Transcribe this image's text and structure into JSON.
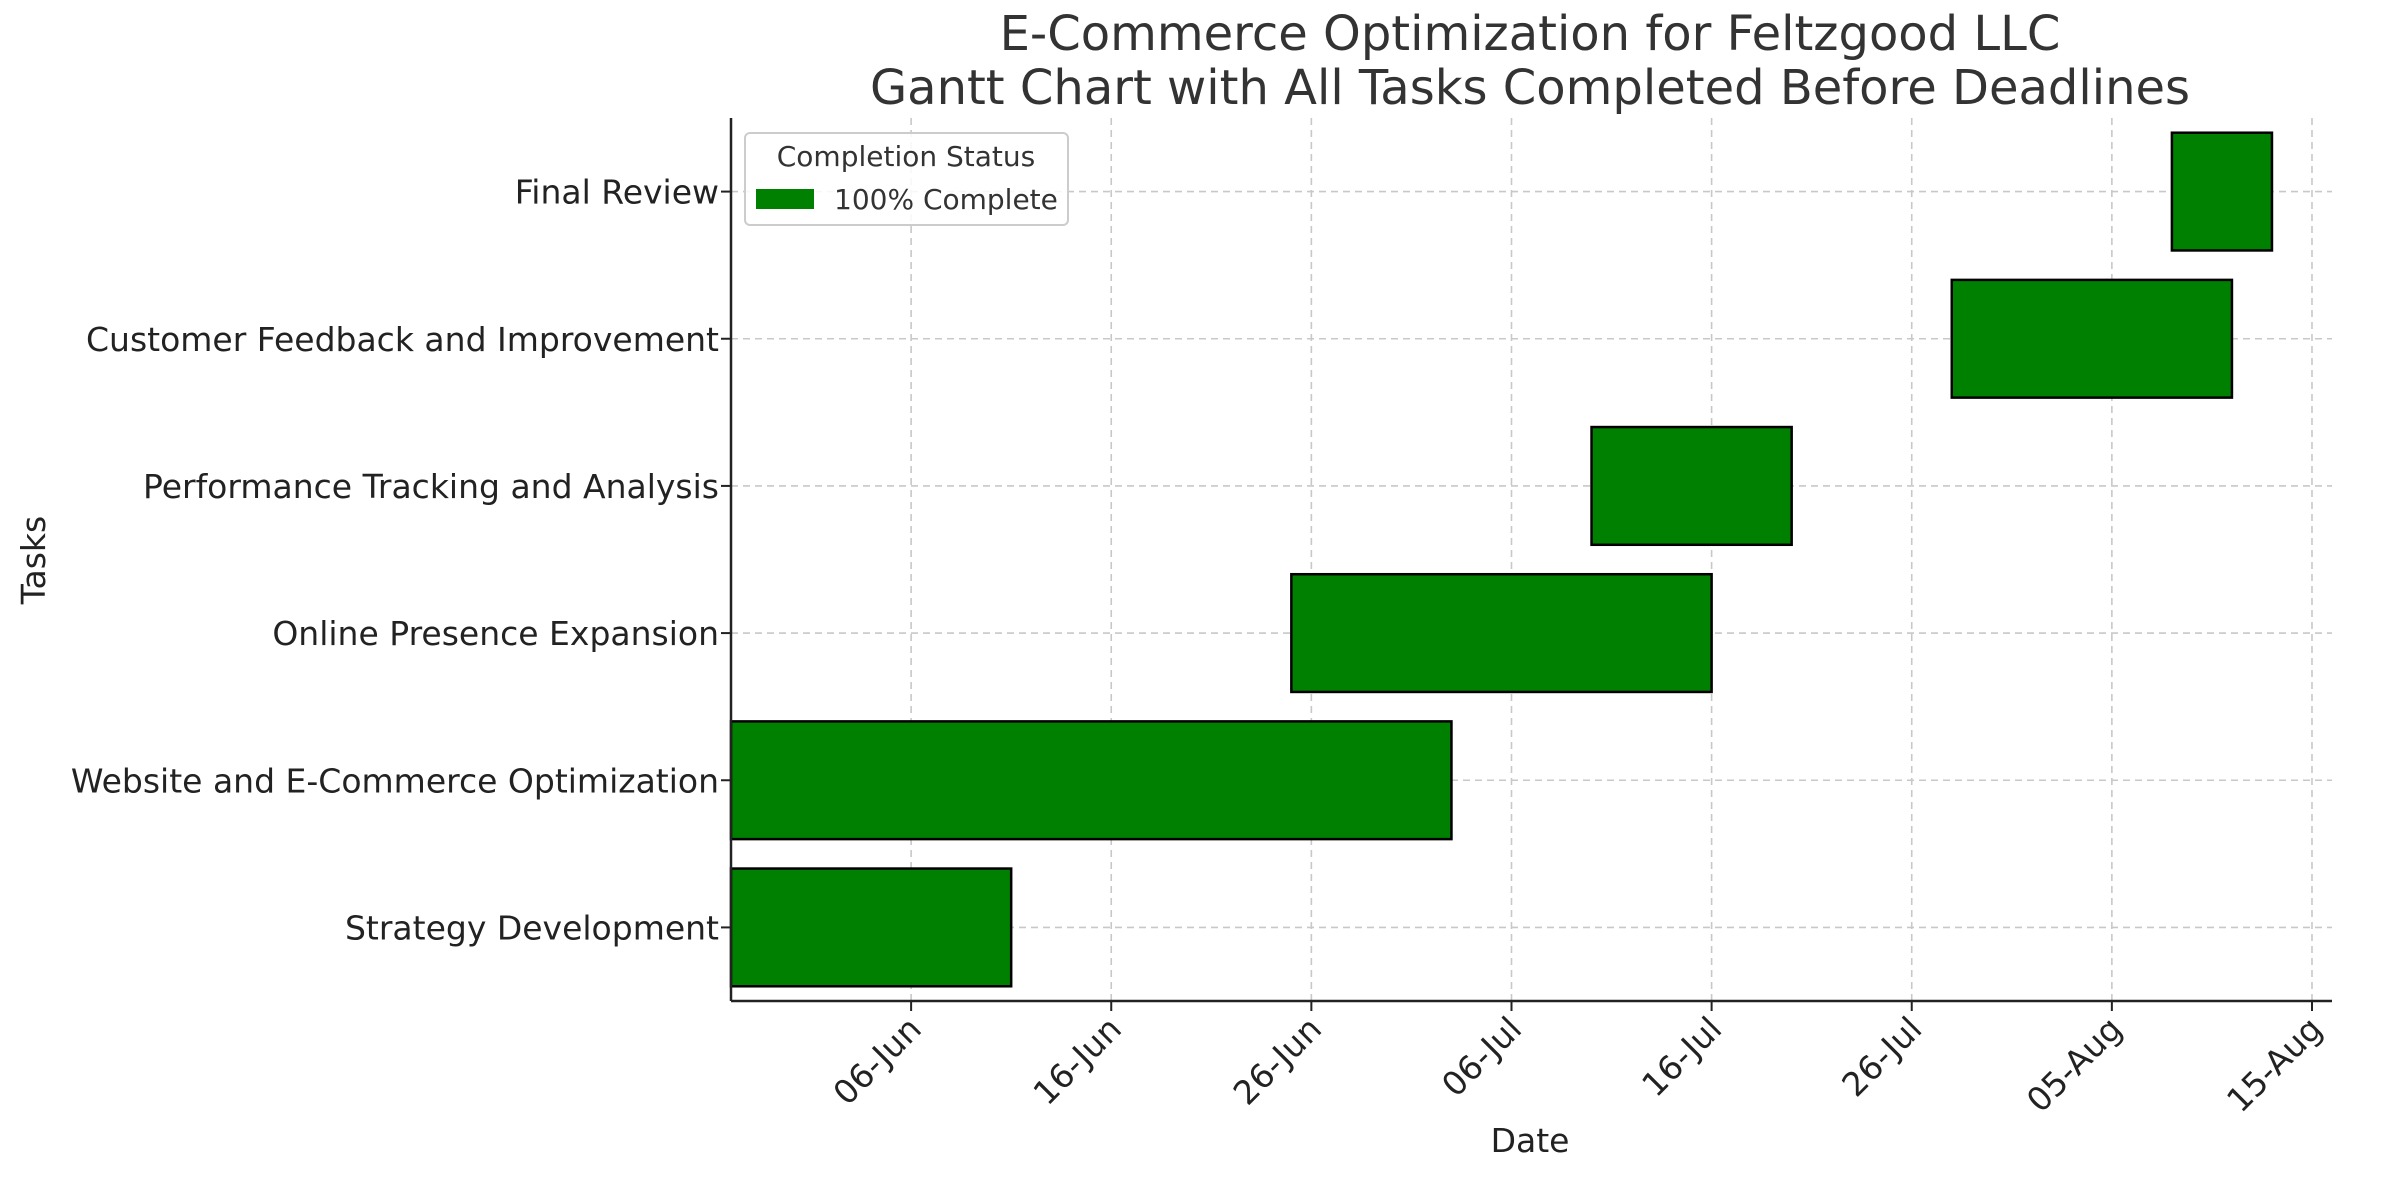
{
  "chart_data": {
    "type": "gantt",
    "title_lines": [
      "E-Commerce Optimization for Feltzgood LLC",
      "Gantt Chart with All Tasks Completed Before Deadlines"
    ],
    "xlabel": "Date",
    "ylabel": "Tasks",
    "x_axis": {
      "type": "date",
      "range": [
        "2024-05-28",
        "2024-08-16"
      ],
      "ticks": [
        {
          "date": "2024-06-06",
          "label": "06-Jun"
        },
        {
          "date": "2024-06-16",
          "label": "16-Jun"
        },
        {
          "date": "2024-06-26",
          "label": "26-Jun"
        },
        {
          "date": "2024-07-06",
          "label": "06-Jul"
        },
        {
          "date": "2024-07-16",
          "label": "16-Jul"
        },
        {
          "date": "2024-07-26",
          "label": "26-Jul"
        },
        {
          "date": "2024-08-05",
          "label": "05-Aug"
        },
        {
          "date": "2024-08-15",
          "label": "15-Aug"
        }
      ]
    },
    "tasks": [
      {
        "name": "Strategy Development",
        "start": "2024-05-28",
        "end": "2024-06-11",
        "completion": "100% Complete"
      },
      {
        "name": "Website and E-Commerce Optimization",
        "start": "2024-05-28",
        "end": "2024-07-03",
        "completion": "100% Complete"
      },
      {
        "name": "Online Presence Expansion",
        "start": "2024-06-25",
        "end": "2024-07-16",
        "completion": "100% Complete"
      },
      {
        "name": "Performance Tracking and Analysis",
        "start": "2024-07-10",
        "end": "2024-07-20",
        "completion": "100% Complete"
      },
      {
        "name": "Customer Feedback and Improvement",
        "start": "2024-07-28",
        "end": "2024-08-11",
        "completion": "100% Complete"
      },
      {
        "name": "Final Review",
        "start": "2024-08-08",
        "end": "2024-08-13",
        "completion": "100% Complete"
      }
    ],
    "legend": {
      "title": "Completion Status",
      "entries": [
        {
          "label": "100% Complete",
          "color": "#008000"
        }
      ],
      "placement": "upper-left"
    },
    "grid": true,
    "grid_style": "dashed",
    "bar_color": "#008000",
    "bar_edge_color": "#000000"
  }
}
